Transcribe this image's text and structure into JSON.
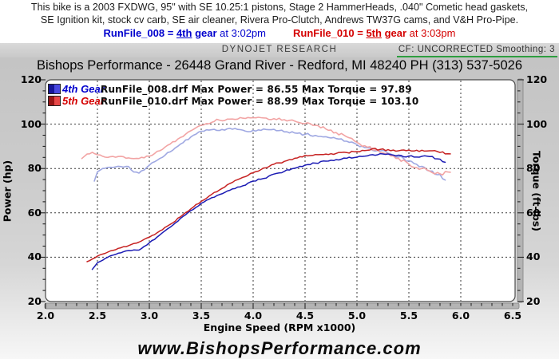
{
  "notes": {
    "line1": "This bike is a 2003 FXDWG, 95\" with SE 10.25:1 pistons, Stage 2 HammerHeads, .040\" Cometic head gaskets,",
    "line2": "SE Ignition kit, stock cv carb, SE air cleaner, Rivera Pro-Clutch, Andrews TW37G cams, and V&H Pro-Pipe.",
    "run1": {
      "file": "RunFile_008",
      "equals": "=",
      "gear_num": "4th",
      "gear_word": "gear",
      "time": "at 3:02pm"
    },
    "run2": {
      "file": "RunFile_010",
      "equals": "=",
      "gear_num": "5th",
      "gear_word": "gear",
      "time": "at 3:03pm"
    }
  },
  "header": {
    "brand": "DYNOJET RESEARCH",
    "cf": "CF: UNCORRECTED  Smoothing: 3"
  },
  "title": "Bishops Performance - 26448 Grand River - Redford, MI 48240   PH (313) 537-5026",
  "website": "www.BishopsPerformance.com",
  "colors": {
    "note_blue": "#0000cd",
    "note_red": "#d40000",
    "green_underline": "#2e9e40",
    "grid": "#3a3a3a",
    "plot_border": "#4a4a4a"
  },
  "chart_data": {
    "type": "line",
    "xlabel": "Engine Speed (RPM x1000)",
    "ylabel_left": "Power (hp)",
    "ylabel_right": "Torque (ft-lbs)",
    "xlim": [
      2.0,
      6.5
    ],
    "ylim": [
      20,
      120
    ],
    "grid": true,
    "x_ticks": [
      "2.0",
      "2.5",
      "3.0",
      "3.5",
      "4.0",
      "4.5",
      "5.0",
      "5.5",
      "6.0",
      "6.5"
    ],
    "y_ticks_left": [
      "120",
      "100",
      "80",
      "60",
      "40",
      "20"
    ],
    "y_ticks_right": [
      "120",
      "100",
      "80",
      "60",
      "40",
      "20"
    ],
    "y_tick_values": [
      120,
      100,
      80,
      60,
      40,
      20
    ],
    "legend": [
      {
        "gear": "4th Gear",
        "text": "RunFile_008.drf Max Power = 86.55 Max Torque = 97.89",
        "color": "#0000cd",
        "chip_dark": "#16169a",
        "chip_light": "#4848e0"
      },
      {
        "gear": "5th Gear",
        "text": "RunFile_010.drf Max Power = 88.99 Max Torque = 103.10",
        "color": "#d40000",
        "chip_dark": "#9a1616",
        "chip_light": "#e84848"
      }
    ],
    "max_values": {
      "run1_power": 86.55,
      "run1_torque": 97.89,
      "run2_power": 88.99,
      "run2_torque": 103.1
    },
    "series": [
      {
        "name": "torque-4th-gear",
        "color": "#9fa8e2",
        "width": 1.6,
        "jitter": 0.45,
        "points": [
          [
            2.47,
            74.3
          ],
          [
            2.5,
            78.5
          ],
          [
            2.55,
            80.0
          ],
          [
            2.6,
            80.5
          ],
          [
            2.7,
            81.0
          ],
          [
            2.75,
            80.6
          ],
          [
            2.8,
            80.9
          ],
          [
            2.85,
            78.4
          ],
          [
            2.9,
            77.9
          ],
          [
            2.95,
            79.3
          ],
          [
            3.0,
            81.5
          ],
          [
            3.1,
            84.5
          ],
          [
            3.2,
            87.5
          ],
          [
            3.3,
            91.0
          ],
          [
            3.4,
            94.2
          ],
          [
            3.5,
            96.8
          ],
          [
            3.6,
            97.5
          ],
          [
            3.7,
            97.6
          ],
          [
            3.75,
            97.89
          ],
          [
            3.8,
            97.7
          ],
          [
            3.9,
            97.3
          ],
          [
            3.95,
            96.6
          ],
          [
            4.05,
            97.4
          ],
          [
            4.15,
            97.5
          ],
          [
            4.25,
            97.1
          ],
          [
            4.3,
            96.5
          ],
          [
            4.4,
            96.0
          ],
          [
            4.5,
            95.4
          ],
          [
            4.6,
            94.9
          ],
          [
            4.7,
            94.3
          ],
          [
            4.8,
            93.5
          ],
          [
            4.9,
            92.3
          ],
          [
            5.0,
            90.8
          ],
          [
            5.1,
            89.4
          ],
          [
            5.2,
            88.1
          ],
          [
            5.3,
            86.9
          ],
          [
            5.4,
            85.2
          ],
          [
            5.5,
            83.5
          ],
          [
            5.6,
            80.8
          ],
          [
            5.7,
            78.9
          ],
          [
            5.8,
            77.3
          ],
          [
            5.85,
            74.8
          ]
        ]
      },
      {
        "name": "torque-5th-gear",
        "color": "#f2a4a4",
        "width": 1.6,
        "jitter": 0.45,
        "points": [
          [
            2.35,
            84.5
          ],
          [
            2.4,
            86.5
          ],
          [
            2.45,
            87.3
          ],
          [
            2.5,
            86.2
          ],
          [
            2.6,
            85.0
          ],
          [
            2.7,
            85.4
          ],
          [
            2.8,
            84.8
          ],
          [
            2.9,
            84.5
          ],
          [
            3.0,
            85.5
          ],
          [
            3.1,
            88.0
          ],
          [
            3.2,
            91.0
          ],
          [
            3.3,
            94.0
          ],
          [
            3.4,
            97.0
          ],
          [
            3.5,
            99.5
          ],
          [
            3.6,
            100.8
          ],
          [
            3.65,
            102.2
          ],
          [
            3.7,
            101.5
          ],
          [
            3.8,
            102.3
          ],
          [
            3.9,
            102.7
          ],
          [
            4.0,
            102.9
          ],
          [
            4.05,
            103.1
          ],
          [
            4.1,
            102.8
          ],
          [
            4.2,
            102.5
          ],
          [
            4.3,
            102.0
          ],
          [
            4.4,
            101.4
          ],
          [
            4.5,
            100.3
          ],
          [
            4.6,
            99.5
          ],
          [
            4.7,
            97.8
          ],
          [
            4.8,
            96.2
          ],
          [
            4.9,
            94.3
          ],
          [
            5.0,
            91.8
          ],
          [
            5.1,
            89.6
          ],
          [
            5.2,
            88.2
          ],
          [
            5.3,
            86.7
          ],
          [
            5.4,
            84.6
          ],
          [
            5.5,
            82.0
          ],
          [
            5.55,
            80.5
          ],
          [
            5.6,
            79.6
          ],
          [
            5.65,
            80.2
          ],
          [
            5.7,
            78.8
          ],
          [
            5.8,
            77.6
          ],
          [
            5.9,
            78.3
          ]
        ]
      },
      {
        "name": "power-4th-gear",
        "color": "#1c1cb4",
        "width": 1.5,
        "jitter": 0.3,
        "points": [
          [
            2.45,
            34.5
          ],
          [
            2.5,
            37.5
          ],
          [
            2.6,
            40.0
          ],
          [
            2.7,
            41.8
          ],
          [
            2.8,
            43.0
          ],
          [
            2.9,
            43.2
          ],
          [
            3.0,
            46.5
          ],
          [
            3.1,
            50.0
          ],
          [
            3.2,
            53.5
          ],
          [
            3.3,
            57.5
          ],
          [
            3.4,
            61.0
          ],
          [
            3.5,
            64.3
          ],
          [
            3.6,
            66.8
          ],
          [
            3.7,
            68.6
          ],
          [
            3.8,
            70.8
          ],
          [
            3.9,
            72.2
          ],
          [
            4.0,
            74.3
          ],
          [
            4.1,
            75.5
          ],
          [
            4.2,
            77.5
          ],
          [
            4.3,
            78.7
          ],
          [
            4.4,
            80.1
          ],
          [
            4.5,
            81.5
          ],
          [
            4.6,
            82.4
          ],
          [
            4.7,
            83.3
          ],
          [
            4.8,
            84.0
          ],
          [
            4.9,
            84.6
          ],
          [
            5.0,
            85.1
          ],
          [
            5.1,
            85.7
          ],
          [
            5.2,
            86.2
          ],
          [
            5.3,
            86.55
          ],
          [
            5.4,
            86.0
          ],
          [
            5.45,
            85.3
          ],
          [
            5.5,
            85.6
          ],
          [
            5.6,
            85.1
          ],
          [
            5.7,
            85.4
          ],
          [
            5.8,
            84.2
          ],
          [
            5.85,
            82.8
          ]
        ]
      },
      {
        "name": "power-5th-gear",
        "color": "#c62222",
        "width": 1.5,
        "jitter": 0.3,
        "points": [
          [
            2.4,
            38.0
          ],
          [
            2.5,
            40.5
          ],
          [
            2.6,
            42.3
          ],
          [
            2.7,
            44.0
          ],
          [
            2.8,
            45.2
          ],
          [
            2.9,
            46.8
          ],
          [
            3.0,
            49.0
          ],
          [
            3.1,
            51.8
          ],
          [
            3.2,
            54.8
          ],
          [
            3.3,
            58.2
          ],
          [
            3.4,
            61.8
          ],
          [
            3.5,
            65.2
          ],
          [
            3.6,
            68.3
          ],
          [
            3.7,
            71.0
          ],
          [
            3.8,
            73.7
          ],
          [
            3.9,
            76.0
          ],
          [
            4.0,
            78.1
          ],
          [
            4.1,
            80.2
          ],
          [
            4.2,
            81.9
          ],
          [
            4.3,
            83.2
          ],
          [
            4.4,
            84.6
          ],
          [
            4.5,
            85.9
          ],
          [
            4.6,
            86.3
          ],
          [
            4.7,
            86.5
          ],
          [
            4.8,
            86.8
          ],
          [
            4.9,
            87.2
          ],
          [
            5.0,
            87.6
          ],
          [
            5.1,
            88.2
          ],
          [
            5.15,
            88.99
          ],
          [
            5.2,
            88.3
          ],
          [
            5.3,
            88.5
          ],
          [
            5.4,
            88.0
          ],
          [
            5.5,
            88.3
          ],
          [
            5.6,
            87.7
          ],
          [
            5.7,
            88.0
          ],
          [
            5.8,
            87.2
          ],
          [
            5.9,
            86.6
          ]
        ]
      }
    ]
  }
}
